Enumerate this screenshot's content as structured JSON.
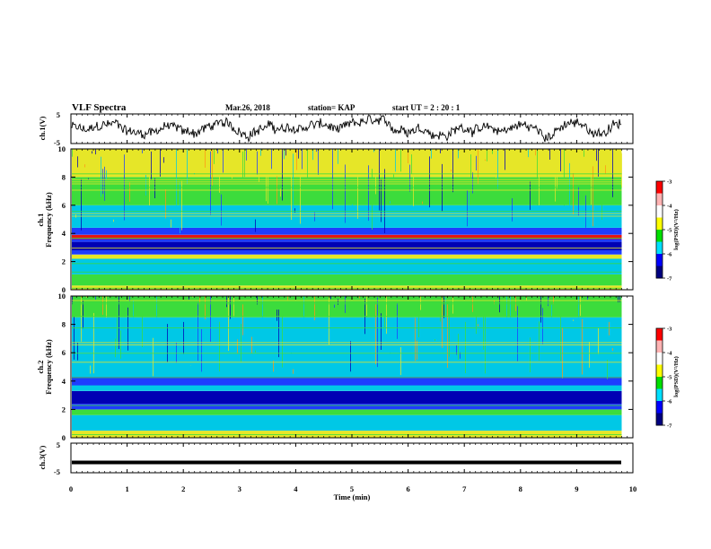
{
  "header": {
    "title": "VLF Spectra",
    "date": "Mar.26, 2018",
    "station": "station= KAP",
    "start": "start  UT =   2 : 20 : 1"
  },
  "chart_data": [
    {
      "type": "line",
      "ylabel": "ch.1(V)",
      "ylim": [
        -5,
        5
      ],
      "yticks": [
        "5",
        "-5"
      ],
      "xlim": [
        0,
        10
      ],
      "description_series": "noisy voltage waveform oscillating roughly between -3 and 3 V"
    },
    {
      "type": "heatmap",
      "ylabel_line1": "ch.1",
      "ylabel_line2": "Frequency  (kHz)",
      "ylim": [
        0,
        10
      ],
      "yticks": [
        "0",
        "2",
        "4",
        "6",
        "8",
        "10"
      ],
      "xlim": [
        0,
        9.8
      ],
      "colorbar": {
        "label": "log(PSD)(V²/Hz)",
        "ticks": [
          "-3",
          "-4",
          "-5",
          "-6",
          "-7"
        ],
        "range": [
          -7,
          -3
        ]
      },
      "bands": [
        {
          "from": 0.0,
          "to": 0.3,
          "level": "yellow"
        },
        {
          "from": 0.3,
          "to": 1.1,
          "level": "green"
        },
        {
          "from": 1.1,
          "to": 2.2,
          "level": "cyan"
        },
        {
          "from": 2.2,
          "to": 2.5,
          "level": "yellow"
        },
        {
          "from": 2.5,
          "to": 2.8,
          "level": "blue"
        },
        {
          "from": 2.8,
          "to": 3.4,
          "level": "darkblue"
        },
        {
          "from": 3.4,
          "to": 3.6,
          "level": "blue"
        },
        {
          "from": 3.6,
          "to": 3.9,
          "level": "red"
        },
        {
          "from": 3.9,
          "to": 4.4,
          "level": "blue"
        },
        {
          "from": 4.4,
          "to": 6.0,
          "level": "cyan"
        },
        {
          "from": 6.0,
          "to": 8.0,
          "level": "green"
        },
        {
          "from": 8.0,
          "to": 10.0,
          "level": "yellow"
        }
      ]
    },
    {
      "type": "heatmap",
      "ylabel_line1": "ch.2",
      "ylabel_line2": "Frequency  (kHz)",
      "ylim": [
        0,
        10
      ],
      "yticks": [
        "0",
        "2",
        "4",
        "6",
        "8",
        "10"
      ],
      "xlim": [
        0,
        9.8
      ],
      "colorbar": {
        "label": "log(PSD)(V²/Hz)",
        "ticks": [
          "-3",
          "-4",
          "-5",
          "-6",
          "-7"
        ],
        "range": [
          -7,
          -3
        ]
      },
      "bands": [
        {
          "from": 0.0,
          "to": 0.5,
          "level": "yellow"
        },
        {
          "from": 0.5,
          "to": 1.6,
          "level": "cyan"
        },
        {
          "from": 1.6,
          "to": 2.0,
          "level": "green"
        },
        {
          "from": 2.0,
          "to": 2.4,
          "level": "blue"
        },
        {
          "from": 2.4,
          "to": 3.3,
          "level": "darkblue"
        },
        {
          "from": 3.3,
          "to": 3.7,
          "level": "cyan"
        },
        {
          "from": 3.7,
          "to": 4.3,
          "level": "blue"
        },
        {
          "from": 4.3,
          "to": 6.0,
          "level": "cyan"
        },
        {
          "from": 6.0,
          "to": 8.5,
          "level": "cyan"
        },
        {
          "from": 8.5,
          "to": 10.0,
          "level": "green"
        }
      ]
    },
    {
      "type": "line",
      "ylabel": "ch.3(V)",
      "ylim": [
        -5,
        5
      ],
      "yticks": [
        "5",
        "-5"
      ],
      "xlim": [
        0,
        10
      ],
      "constant_value": -1.5
    }
  ],
  "xaxis": {
    "label": "Time  (min)",
    "ticks": [
      "0",
      "1",
      "2",
      "3",
      "4",
      "5",
      "6",
      "7",
      "8",
      "9",
      "10"
    ],
    "range": [
      0,
      10
    ]
  },
  "colors": {
    "darkblue": "#0000b4",
    "blue": "#1e3cff",
    "cyan": "#00c8e6",
    "green": "#3cdc3c",
    "yellow": "#e6e628",
    "orange": "#ff9614",
    "red": "#e61414"
  }
}
